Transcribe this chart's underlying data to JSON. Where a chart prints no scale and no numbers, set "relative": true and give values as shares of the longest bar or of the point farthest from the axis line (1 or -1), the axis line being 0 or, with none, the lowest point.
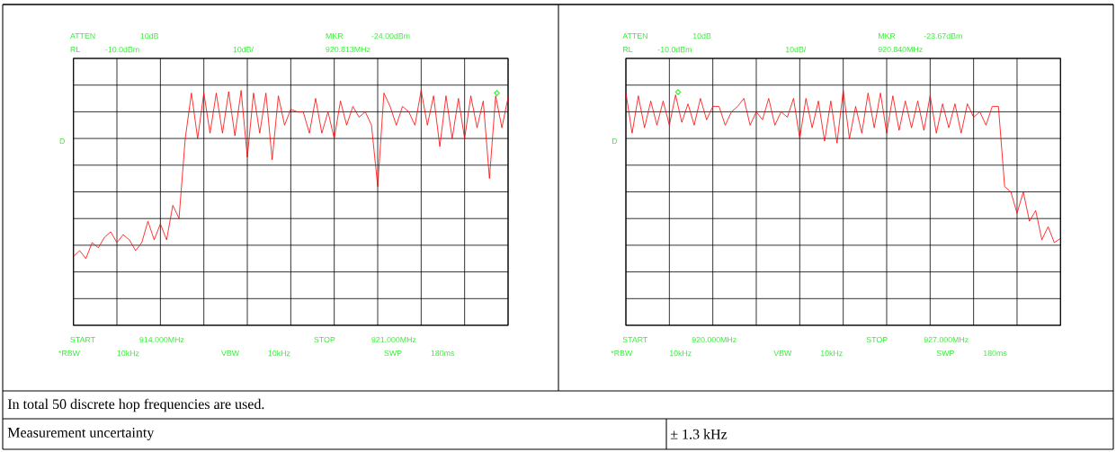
{
  "chart_data": [
    {
      "type": "line",
      "relative": true,
      "grid": true,
      "categories": [
        null,
        null,
        null,
        null,
        null,
        null,
        null,
        null,
        null,
        null,
        null,
        null,
        null,
        null,
        null,
        null,
        null,
        null,
        null,
        null,
        null,
        null,
        null,
        null,
        null,
        null,
        null,
        null,
        null,
        null,
        null,
        null,
        null,
        null,
        null,
        null,
        null,
        null,
        null,
        null,
        null,
        null,
        null,
        null,
        null,
        null,
        null,
        null,
        null,
        null,
        null,
        null,
        null,
        null,
        null,
        null,
        null,
        null,
        null,
        null,
        null,
        null,
        null,
        null,
        null,
        null,
        null,
        null,
        null,
        null,
        null
      ],
      "annotations": [
        "ATTEN",
        "10dB",
        "MKR",
        "-24.00dBm",
        "RL",
        "-10.0dBm",
        "10dB/",
        "920.813MHz",
        "D",
        "START",
        "914.000MHz",
        "STOP",
        "921.000MHz",
        "*RBW",
        "10kHz",
        "VBW",
        "10kHz",
        "SWP",
        "180ms"
      ],
      "series": [
        {
          "type": "line",
          "color": "#ff0000",
          "values": [
            0.293,
            0.318,
            0.284,
            0.352,
            0.33,
            0.375,
            0.398,
            0.352,
            0.386,
            0.364,
            0.318,
            0.352,
            0.443,
            0.364,
            0.432,
            0.364,
            0.511,
            0.455,
            0.795,
            0.989,
            0.795,
            0.989,
            0.818,
            0.989,
            0.818,
            0.995,
            0.807,
            1.0,
            0.716,
            0.989,
            0.818,
            0.989,
            0.705,
            0.977,
            0.852,
            0.92,
            0.909,
            0.909,
            0.818,
            0.966,
            0.818,
            0.909,
            0.795,
            0.955,
            0.852,
            0.932,
            0.886,
            0.909,
            0.852,
            0.591,
            0.989,
            0.932,
            0.852,
            0.932,
            0.909,
            0.852,
            1.0,
            0.852,
            0.977,
            0.761,
            0.977,
            0.795,
            0.966,
            0.795,
            0.977,
            0.841,
            0.955,
            0.625,
            0.977,
            0.841,
            0.97
          ]
        }
      ]
    },
    {
      "type": "line",
      "relative": true,
      "grid": true,
      "categories": [
        null,
        null,
        null,
        null,
        null,
        null,
        null,
        null,
        null,
        null,
        null,
        null,
        null,
        null,
        null,
        null,
        null,
        null,
        null,
        null,
        null,
        null,
        null,
        null,
        null,
        null,
        null,
        null,
        null,
        null,
        null,
        null,
        null,
        null,
        null,
        null,
        null,
        null,
        null,
        null,
        null,
        null,
        null,
        null,
        null,
        null,
        null,
        null,
        null,
        null,
        null,
        null,
        null,
        null,
        null,
        null,
        null,
        null,
        null,
        null,
        null,
        null,
        null,
        null,
        null,
        null,
        null,
        null,
        null,
        null,
        null
      ],
      "annotations": [
        "ATTEN",
        "10dB",
        "MKR",
        "-23.67dBm",
        "RL",
        "-10.0dBm",
        "10dB/",
        "920.840MHz",
        "D",
        "START",
        "920.000MHz",
        "STOP",
        "927.000MHz",
        "*RBW",
        "10kHz",
        "VBW",
        "10kHz",
        "SWP",
        "180ms"
      ],
      "series": [
        {
          "type": "line",
          "color": "#ff0000",
          "values": [
            0.99,
            0.818,
            0.977,
            0.841,
            0.955,
            0.852,
            0.955,
            0.852,
            0.981,
            0.864,
            0.943,
            0.852,
            0.966,
            0.875,
            0.932,
            0.932,
            0.852,
            0.909,
            0.932,
            0.966,
            0.852,
            0.909,
            0.875,
            0.966,
            0.852,
            0.909,
            0.886,
            0.966,
            0.795,
            0.966,
            0.841,
            0.955,
            0.784,
            0.955,
            0.776,
            1.0,
            0.795,
            0.932,
            0.818,
            0.989,
            0.841,
            0.989,
            0.818,
            0.977,
            0.83,
            0.955,
            0.841,
            0.955,
            0.83,
            0.977,
            0.818,
            0.943,
            0.841,
            0.943,
            0.818,
            0.943,
            0.886,
            0.909,
            0.852,
            0.932,
            0.932,
            0.591,
            0.568,
            0.477,
            0.568,
            0.443,
            0.489,
            0.364,
            0.42,
            0.352,
            0.37
          ]
        }
      ]
    },
    {
      "type": "other",
      "annotations": [
        "In total 50 discrete hop frequencies are used.",
        "Measurement uncertainty",
        "± 1.3 kHz"
      ]
    }
  ]
}
